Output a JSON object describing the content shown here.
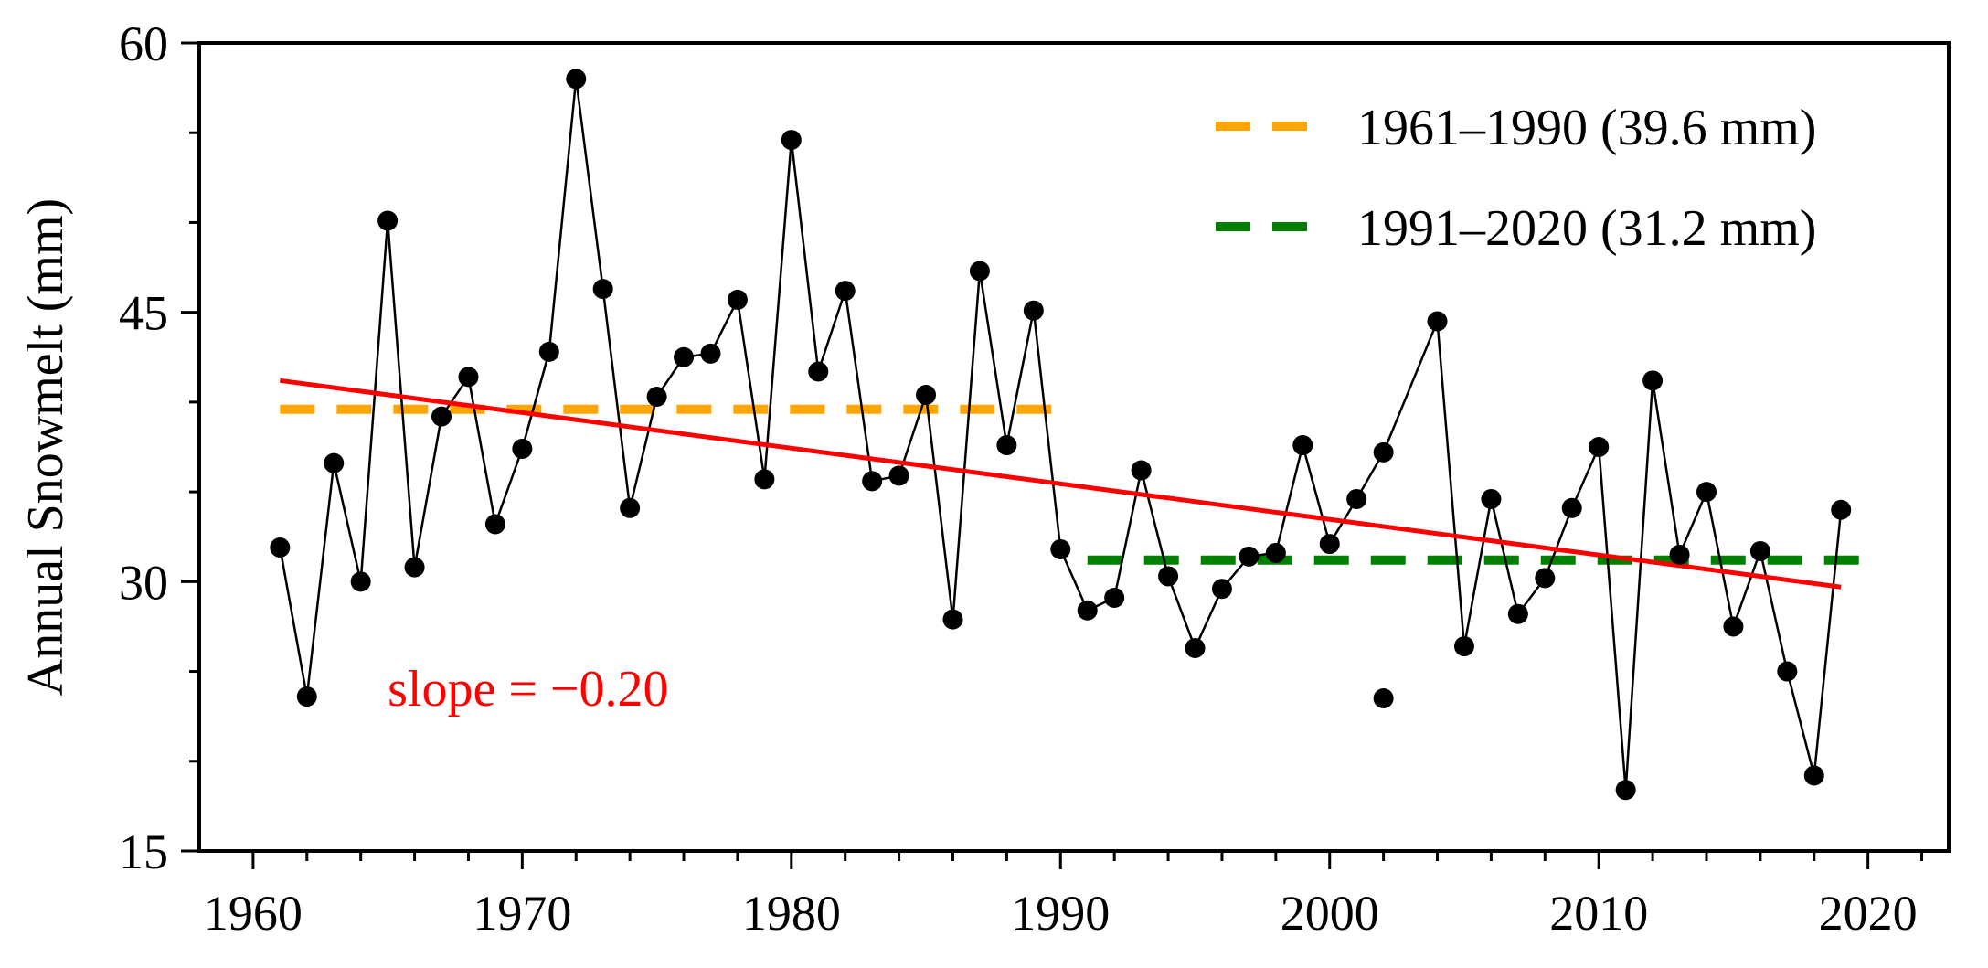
{
  "chart_data": {
    "type": "line",
    "title": "",
    "xlabel": "",
    "ylabel": "Annual Snowmelt (mm)",
    "xlim": [
      1958,
      2023
    ],
    "ylim": [
      15,
      60
    ],
    "xticks": [
      1960,
      1970,
      1980,
      1990,
      2000,
      2010,
      2020
    ],
    "yticks": [
      15,
      30,
      45,
      60
    ],
    "x_minor_step": 2,
    "y_minor_step": 5,
    "grid": false,
    "series": [
      {
        "name": "Annual Snowmelt",
        "color": "#000000",
        "marker": "circle",
        "x": [
          1961,
          1962,
          1963,
          1964,
          1965,
          1966,
          1967,
          1968,
          1969,
          1970,
          1971,
          1972,
          1973,
          1974,
          1975,
          1976,
          1977,
          1978,
          1979,
          1980,
          1981,
          1982,
          1983,
          1984,
          1985,
          1986,
          1987,
          1988,
          1989,
          1990,
          1991,
          1992,
          1993,
          1994,
          1995,
          1996,
          1997,
          1998,
          1999,
          2000,
          2001,
          2002,
          2004,
          2005,
          2006,
          2007,
          2008,
          2009,
          2010,
          2011,
          2012,
          2013,
          2014,
          2015,
          2016,
          2017,
          2018,
          2019
        ],
        "values": [
          31.9,
          23.6,
          36.6,
          30.0,
          50.1,
          30.8,
          39.2,
          41.4,
          33.2,
          37.4,
          42.8,
          58.0,
          46.3,
          34.1,
          40.3,
          42.5,
          42.7,
          45.7,
          35.7,
          54.6,
          41.7,
          46.2,
          35.6,
          35.9,
          40.4,
          27.9,
          47.3,
          37.6,
          45.1,
          31.8,
          28.4,
          29.1,
          36.2,
          30.3,
          26.3,
          29.6,
          31.4,
          31.6,
          37.6,
          32.1,
          34.6,
          37.2,
          44.5,
          26.4,
          34.6,
          28.2,
          30.2,
          34.1,
          37.5,
          18.4,
          41.2,
          31.5,
          35.0,
          27.5,
          31.7,
          25.0,
          19.2,
          34.0
        ],
        "gap_marker": {
          "x": 2002,
          "value": 23.5
        }
      },
      {
        "name": "trend",
        "type": "regression",
        "color": "#ff0000",
        "x": [
          1961,
          2019
        ],
        "values": [
          41.2,
          29.7
        ]
      },
      {
        "name": "1961–1990 (39.6 mm)",
        "type": "mean-line",
        "color": "#ffa500",
        "x": [
          1961,
          1990
        ],
        "values": [
          39.6,
          39.6
        ]
      },
      {
        "name": "1991–2020 (31.2 mm)",
        "type": "mean-line",
        "color": "#008000",
        "x": [
          1991,
          2020
        ],
        "values": [
          31.2,
          31.2
        ]
      }
    ],
    "legend": {
      "position": "top-right",
      "entries": [
        {
          "label": "1961–1990 (39.6 mm)",
          "color": "#ffa500"
        },
        {
          "label": "1991–2020 (31.2 mm)",
          "color": "#008000"
        }
      ]
    },
    "annotation": {
      "text": "slope = −0.20",
      "color": "#ff0000",
      "x": 1965,
      "y": 24.0
    }
  }
}
